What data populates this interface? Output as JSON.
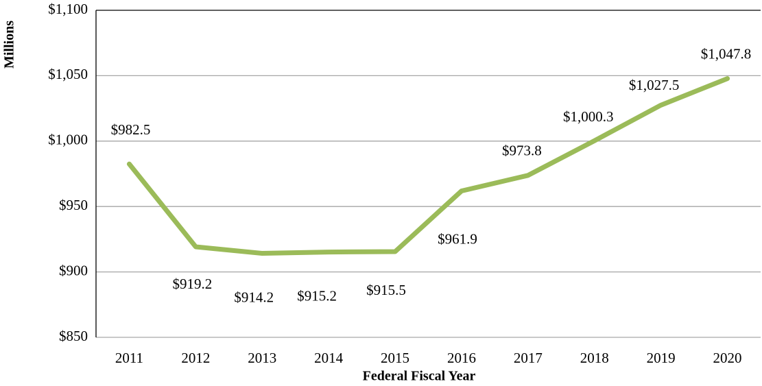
{
  "chart_data": {
    "type": "line",
    "x_label": "Federal Fiscal Year",
    "y_label": "Millions",
    "categories": [
      "2011",
      "2012",
      "2013",
      "2014",
      "2015",
      "2016",
      "2017",
      "2018",
      "2019",
      "2020"
    ],
    "series": [
      {
        "name": "Millions",
        "color": "#9bbb59",
        "values": [
          982.5,
          919.2,
          914.2,
          915.2,
          915.5,
          961.9,
          973.8,
          1000.3,
          1027.5,
          1047.8
        ],
        "value_labels": [
          "$982.5",
          "$919.2",
          "$914.2",
          "$915.2",
          "$915.5",
          "$961.9",
          "$973.8",
          "$1,000.3",
          "$1,027.5",
          "$1,047.8"
        ]
      }
    ],
    "ylim": [
      850,
      1100
    ],
    "yticks": [
      {
        "value": 850,
        "label": "$850"
      },
      {
        "value": 900,
        "label": "$900"
      },
      {
        "value": 950,
        "label": "$950"
      },
      {
        "value": 1000,
        "label": "$1,000"
      },
      {
        "value": 1050,
        "label": "$1,050"
      },
      {
        "value": 1100,
        "label": "$1,100"
      }
    ],
    "grid": true
  }
}
